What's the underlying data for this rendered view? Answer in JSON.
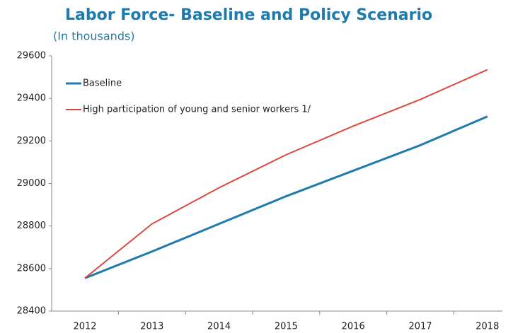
{
  "chart_data": {
    "type": "line",
    "title": "Labor Force- Baseline and Policy Scenario",
    "subtitle": "(In thousands)",
    "categories": [
      "2012",
      "2013",
      "2014",
      "2015",
      "2016",
      "2017",
      "2018"
    ],
    "series": [
      {
        "name": "Baseline",
        "color": "#1f7bab",
        "values": [
          28555,
          28680,
          28810,
          28940,
          29060,
          29180,
          29315
        ]
      },
      {
        "name": "High participation of young and senior workers 1/",
        "color": "#d9493f",
        "values": [
          28555,
          28810,
          28980,
          29135,
          29270,
          29395,
          29535
        ]
      }
    ],
    "ylim": [
      28400,
      29600
    ],
    "yticks": [
      28400,
      28600,
      28800,
      29000,
      29200,
      29400,
      29600
    ],
    "grid": false,
    "legend": "top-left"
  }
}
